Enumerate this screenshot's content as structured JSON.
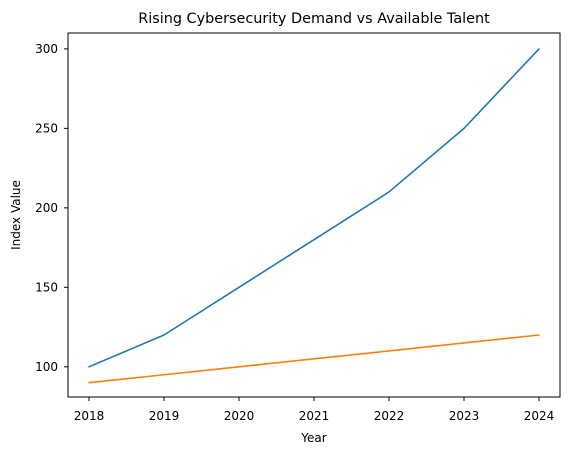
{
  "chart_data": {
    "type": "line",
    "title": "Rising Cybersecurity Demand vs Available Talent",
    "xlabel": "Year",
    "ylabel": "Index Value",
    "x": [
      "2018",
      "2019",
      "2020",
      "2021",
      "2022",
      "2023",
      "2024"
    ],
    "ylim": [
      81,
      310
    ],
    "yticks": [
      "100",
      "150",
      "200",
      "250",
      "300"
    ],
    "grid": false,
    "legend": "none",
    "series": [
      {
        "values": [
          100,
          120,
          150,
          180,
          210,
          250,
          300
        ],
        "color": "#1f77b4"
      },
      {
        "values": [
          90,
          95,
          100,
          105,
          110,
          115,
          120
        ],
        "color": "#ff7f0e"
      }
    ]
  }
}
